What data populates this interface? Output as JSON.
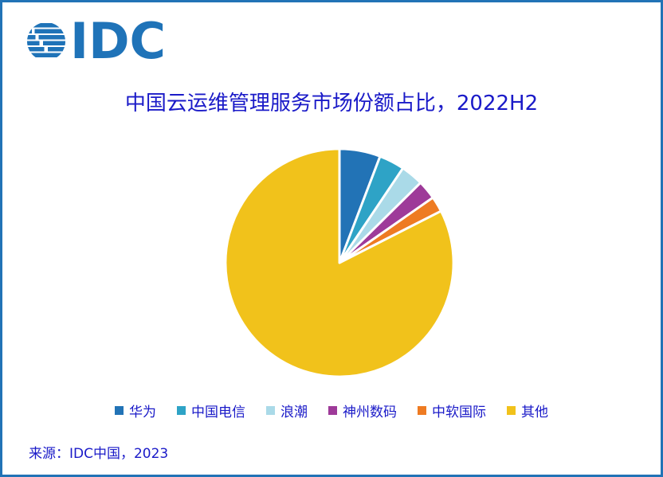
{
  "page": {
    "border_color": "#2273B6",
    "background_color": "#FFFFFF"
  },
  "logo": {
    "text": "IDC",
    "icon": "striped-globe-icon",
    "color": "#1F73B8"
  },
  "title": {
    "text": "中国云运维管理服务市场份额占比，2022H2",
    "color": "#1A1AC8"
  },
  "chart_data": {
    "type": "pie",
    "title": "中国云运维管理服务市场份额占比，2022H2",
    "labels": [
      "华为",
      "中国电信",
      "浪潮",
      "神州数码",
      "中软国际",
      "其他"
    ],
    "values_pct": [
      5.8,
      3.6,
      3.2,
      2.7,
      2.2,
      82.5
    ],
    "colors": [
      "#2273B6",
      "#2EA3C6",
      "#AADAE8",
      "#9E3A99",
      "#EE7B22",
      "#F1C21B"
    ],
    "start_angle_deg": 0,
    "direction": "clockwise",
    "slice_separator_color": "#FFFFFF",
    "data_labels_shown": false,
    "legend_position": "bottom"
  },
  "legend": {
    "text_color": "#1A1AC8"
  },
  "source": {
    "text": "来源：IDC中国，2023",
    "color": "#1A1AC8"
  }
}
